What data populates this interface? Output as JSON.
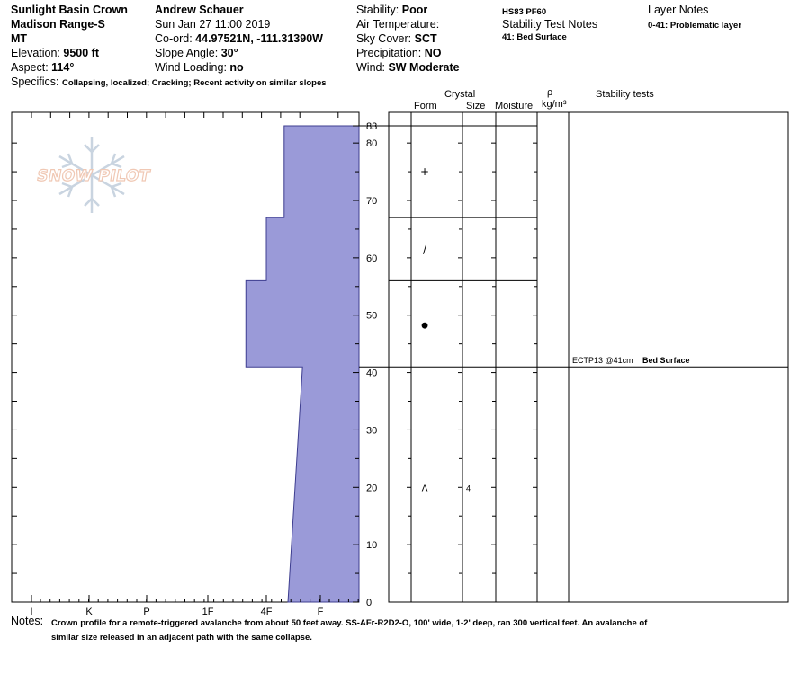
{
  "header": {
    "col1": {
      "line1": "Sunlight Basin Crown",
      "line2": "Madison Range-S",
      "line3": "MT",
      "elevation_label": "Elevation:",
      "elevation": "9500 ft",
      "aspect_label": "Aspect:",
      "aspect": "114°"
    },
    "col2": {
      "observer": "Andrew Schauer",
      "datetime": "Sun Jan 27 11:00 2019",
      "coord_label": "Co-ord:",
      "coord": "44.97521N, -111.31390W",
      "slope_label": "Slope Angle:",
      "slope": "30°",
      "wind_loading_label": "Wind Loading:",
      "wind_loading": "no"
    },
    "col3": {
      "stability_label": "Stability:",
      "stability": "Poor",
      "air_temp_label": "Air Temperature:",
      "sky_label": "Sky Cover:",
      "sky": "SCT",
      "precip_label": "Precipitation:",
      "precip": "NO",
      "wind_label": "Wind:",
      "wind": "SW Moderate"
    },
    "col4": {
      "hs": "HS83 PF60",
      "notes_title": "Stability Test Notes",
      "note1": "41: Bed Surface"
    },
    "col5": {
      "title": "Layer Notes",
      "note1": "0-41: Problematic layer"
    },
    "specifics_label": "Specifics:",
    "specifics": "Collapsing, localized; Cracking; Recent activity on similar slopes"
  },
  "logo": {
    "text": "SNOW PILOT",
    "icon": "snowflake-icon"
  },
  "columns": {
    "crystal": "Crystal",
    "form": "Form",
    "size": "Size",
    "moisture": "Moisture",
    "rho": "ρ",
    "density_unit": "kg/m³",
    "stability_tests": "Stability tests"
  },
  "footer": {
    "notes_label": "Notes:",
    "line1": "Crown profile for a remote-triggered avalanche from about 50 feet away. SS-AFr-R2D2-O, 100' wide, 1-2' deep, ran 300 vertical feet. An avalanche of",
    "line2": "similar size released in an adjacent path with the same collapse."
  },
  "colors": {
    "hardness_fill": "#9a9ad8",
    "hardness_stroke": "#3d3d8f",
    "logo": "#f0c8b4",
    "flake": "#c9d4e0"
  },
  "chart_data": {
    "type": "snow_profile",
    "height_axis": {
      "min": 0,
      "max": 83,
      "ticks": [
        0,
        10,
        20,
        30,
        40,
        50,
        60,
        70,
        80,
        83
      ],
      "minor_step": 5
    },
    "hardness_axis": {
      "labels": [
        "I",
        "K",
        "P",
        "1F",
        "4F",
        "F"
      ],
      "reversed": true
    },
    "hardness_polygon": [
      {
        "hardness": 0.6,
        "height": 0
      },
      {
        "hardness": 0.33,
        "height": 41
      },
      {
        "hardness": 1.35,
        "height": 41
      },
      {
        "hardness": 1.35,
        "height": 56
      },
      {
        "hardness": 1.0,
        "height": 56
      },
      {
        "hardness": 1.0,
        "height": 67
      },
      {
        "hardness": 0.67,
        "height": 67
      },
      {
        "hardness": 0.67,
        "height": 83
      }
    ],
    "layer_boundaries": [
      83,
      67,
      56,
      41
    ],
    "layers": [
      {
        "top": 41,
        "bottom": 0,
        "form_symbol": "Λ",
        "size": "4",
        "symbol_height": 20
      },
      {
        "top": 56,
        "bottom": 41,
        "form_symbol": "●",
        "size": "",
        "symbol_height": 48.5
      },
      {
        "top": 67,
        "bottom": 56,
        "form_symbol": "/",
        "size": "",
        "symbol_height": 61.5
      },
      {
        "top": 83,
        "bottom": 67,
        "form_symbol": "+",
        "size": "",
        "symbol_height": 75
      }
    ],
    "stability_tests": [
      {
        "height": 41,
        "test": "ECTP13 @41cm",
        "note": "Bed Surface"
      }
    ]
  }
}
